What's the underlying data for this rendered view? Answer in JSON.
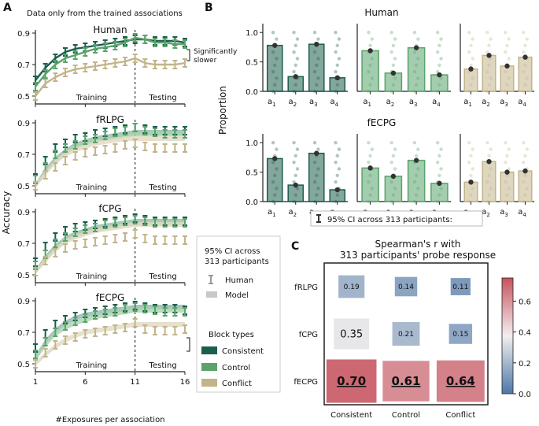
{
  "colors": {
    "consistent": "#1d5d4d",
    "control": "#5aa36b",
    "conflict": "#c2b48a",
    "consistent_model": "#8fb9ae",
    "control_model": "#a9d2ad",
    "conflict_model": "#e0d8bf",
    "heat_low": "#4d77a8",
    "heat_mid": "#f2efee",
    "heat_high": "#c7535f"
  },
  "panel_labels": {
    "a": "A",
    "b": "B",
    "c": "C"
  },
  "panel_a": {
    "header": "Data only from the trained associations",
    "ylabel": "Accuracy",
    "xlabel": "#Exposures per association",
    "xticks": [
      "1",
      "6",
      "11",
      "16"
    ],
    "yticks": [
      "0.5",
      "0.7",
      "0.9"
    ],
    "training_label": "Training",
    "testing_label": "Testing",
    "significance_label_1": "Significantly",
    "significance_label_2": "slower"
  },
  "legend_a": {
    "ci_line1": "95% CI across",
    "ci_line2": "313 participants",
    "human_label": "Human",
    "model_label": "Model",
    "block_title": "Block types",
    "items": [
      "Consistent",
      "Control",
      "Conflict"
    ]
  },
  "panel_b": {
    "ylabel": "Proportion",
    "yticks": [
      "0.0",
      "0.5",
      "1.0"
    ],
    "xtick_base": "a",
    "xtick_subs": [
      "1",
      "2",
      "3",
      "4"
    ],
    "ci_note": "95% CI across 313 participants:"
  },
  "panel_c": {
    "title_line1": "Spearman's r with",
    "title_line2": "313 participants' probe response",
    "colorbar_ticks": [
      "0.0",
      "0.2",
      "0.4",
      "0.6"
    ]
  },
  "chart_data": [
    {
      "type": "line",
      "title": "Human",
      "x": [
        1,
        2,
        3,
        4,
        5,
        6,
        7,
        8,
        9,
        10,
        11,
        12,
        13,
        14,
        15,
        16
      ],
      "xlabel": "#Exposures per association",
      "ylabel": "Accuracy",
      "ylim": [
        0.45,
        0.97
      ],
      "series": [
        {
          "name": "Consistent human",
          "values": [
            0.6,
            0.68,
            0.74,
            0.78,
            0.8,
            0.81,
            0.82,
            0.83,
            0.84,
            0.85,
            0.86,
            0.86,
            0.85,
            0.85,
            0.85,
            0.84
          ]
        },
        {
          "name": "Control human",
          "values": [
            0.56,
            0.64,
            0.7,
            0.74,
            0.76,
            0.78,
            0.8,
            0.81,
            0.82,
            0.84,
            0.87,
            0.86,
            0.84,
            0.84,
            0.83,
            0.83
          ]
        },
        {
          "name": "Conflict human",
          "values": [
            0.5,
            0.58,
            0.62,
            0.65,
            0.67,
            0.68,
            0.69,
            0.7,
            0.71,
            0.72,
            0.74,
            0.71,
            0.7,
            0.7,
            0.7,
            0.71
          ]
        }
      ]
    },
    {
      "type": "line",
      "title": "fRLPG",
      "x": [
        1,
        2,
        3,
        4,
        5,
        6,
        7,
        8,
        9,
        10,
        11,
        12,
        13,
        14,
        15,
        16
      ],
      "ylim": [
        0.45,
        0.97
      ],
      "series": [
        {
          "name": "Consistent human",
          "values": [
            0.55,
            0.66,
            0.74,
            0.77,
            0.8,
            0.81,
            0.83,
            0.84,
            0.85,
            0.86,
            0.87,
            0.86,
            0.85,
            0.85,
            0.85,
            0.85
          ]
        },
        {
          "name": "Control human",
          "values": [
            0.54,
            0.62,
            0.7,
            0.74,
            0.76,
            0.79,
            0.8,
            0.82,
            0.84,
            0.85,
            0.87,
            0.85,
            0.84,
            0.83,
            0.83,
            0.83
          ]
        },
        {
          "name": "Conflict human",
          "values": [
            0.5,
            0.57,
            0.62,
            0.66,
            0.69,
            0.71,
            0.72,
            0.73,
            0.74,
            0.76,
            0.77,
            0.75,
            0.74,
            0.74,
            0.74,
            0.74
          ]
        },
        {
          "name": "Consistent model",
          "values": [
            0.5,
            0.6,
            0.67,
            0.72,
            0.76,
            0.78,
            0.8,
            0.81,
            0.82,
            0.83,
            0.84,
            0.84,
            0.84,
            0.84,
            0.84,
            0.84
          ]
        },
        {
          "name": "Control model",
          "values": [
            0.5,
            0.59,
            0.66,
            0.71,
            0.75,
            0.77,
            0.79,
            0.8,
            0.81,
            0.82,
            0.83,
            0.83,
            0.83,
            0.83,
            0.83,
            0.83
          ]
        },
        {
          "name": "Conflict model",
          "values": [
            0.5,
            0.58,
            0.65,
            0.7,
            0.73,
            0.75,
            0.77,
            0.78,
            0.79,
            0.8,
            0.8,
            0.8,
            0.8,
            0.8,
            0.8,
            0.8
          ]
        }
      ]
    },
    {
      "type": "line",
      "title": "fCPG",
      "x": [
        1,
        2,
        3,
        4,
        5,
        6,
        7,
        8,
        9,
        10,
        11,
        12,
        13,
        14,
        15,
        16
      ],
      "ylim": [
        0.45,
        0.97
      ],
      "series": [
        {
          "name": "Consistent human",
          "values": [
            0.58,
            0.68,
            0.74,
            0.78,
            0.8,
            0.81,
            0.82,
            0.83,
            0.84,
            0.85,
            0.86,
            0.85,
            0.84,
            0.84,
            0.84,
            0.84
          ]
        },
        {
          "name": "Control human",
          "values": [
            0.56,
            0.63,
            0.7,
            0.74,
            0.77,
            0.79,
            0.8,
            0.82,
            0.83,
            0.84,
            0.85,
            0.84,
            0.83,
            0.83,
            0.83,
            0.83
          ]
        },
        {
          "name": "Conflict human",
          "values": [
            0.52,
            0.59,
            0.64,
            0.67,
            0.69,
            0.7,
            0.71,
            0.72,
            0.73,
            0.74,
            0.76,
            0.73,
            0.72,
            0.72,
            0.72,
            0.72
          ]
        },
        {
          "name": "Consistent model",
          "values": [
            0.52,
            0.61,
            0.68,
            0.73,
            0.76,
            0.78,
            0.8,
            0.81,
            0.82,
            0.83,
            0.84,
            0.84,
            0.84,
            0.84,
            0.84,
            0.84
          ]
        },
        {
          "name": "Control model",
          "values": [
            0.52,
            0.6,
            0.67,
            0.72,
            0.75,
            0.77,
            0.79,
            0.8,
            0.81,
            0.82,
            0.83,
            0.83,
            0.83,
            0.83,
            0.83,
            0.83
          ]
        },
        {
          "name": "Conflict model",
          "values": [
            0.52,
            0.59,
            0.66,
            0.71,
            0.74,
            0.76,
            0.78,
            0.79,
            0.8,
            0.81,
            0.82,
            0.82,
            0.82,
            0.82,
            0.82,
            0.82
          ]
        }
      ]
    },
    {
      "type": "line",
      "title": "fECPG",
      "x": [
        1,
        2,
        3,
        4,
        5,
        6,
        7,
        8,
        9,
        10,
        11,
        12,
        13,
        14,
        15,
        16
      ],
      "ylim": [
        0.45,
        0.97
      ],
      "series": [
        {
          "name": "Consistent human",
          "values": [
            0.6,
            0.69,
            0.75,
            0.78,
            0.8,
            0.82,
            0.83,
            0.84,
            0.85,
            0.86,
            0.87,
            0.86,
            0.85,
            0.85,
            0.85,
            0.84
          ]
        },
        {
          "name": "Control human",
          "values": [
            0.56,
            0.64,
            0.7,
            0.74,
            0.77,
            0.79,
            0.81,
            0.82,
            0.83,
            0.85,
            0.86,
            0.85,
            0.84,
            0.83,
            0.83,
            0.83
          ]
        },
        {
          "name": "Conflict human",
          "values": [
            0.5,
            0.57,
            0.62,
            0.65,
            0.67,
            0.69,
            0.7,
            0.71,
            0.72,
            0.73,
            0.76,
            0.72,
            0.71,
            0.71,
            0.71,
            0.72
          ]
        },
        {
          "name": "Consistent model",
          "values": [
            0.54,
            0.64,
            0.71,
            0.76,
            0.79,
            0.81,
            0.82,
            0.83,
            0.84,
            0.85,
            0.86,
            0.86,
            0.86,
            0.86,
            0.86,
            0.86
          ]
        },
        {
          "name": "Control model",
          "values": [
            0.53,
            0.62,
            0.69,
            0.73,
            0.76,
            0.78,
            0.8,
            0.81,
            0.82,
            0.83,
            0.84,
            0.84,
            0.84,
            0.84,
            0.84,
            0.84
          ]
        },
        {
          "name": "Conflict model",
          "values": [
            0.5,
            0.56,
            0.61,
            0.65,
            0.68,
            0.7,
            0.71,
            0.72,
            0.73,
            0.74,
            0.75,
            0.75,
            0.75,
            0.75,
            0.75,
            0.75
          ]
        }
      ]
    },
    {
      "type": "bar",
      "title": "Human",
      "ylim": [
        0,
        1.15
      ],
      "ylabel": "Proportion",
      "categories": [
        "a1",
        "a2",
        "a3",
        "a4"
      ],
      "series": [
        {
          "name": "Consistent",
          "values": [
            0.78,
            0.25,
            0.8,
            0.23
          ]
        },
        {
          "name": "Control",
          "values": [
            0.69,
            0.31,
            0.74,
            0.28
          ]
        },
        {
          "name": "Conflict",
          "values": [
            0.38,
            0.61,
            0.43,
            0.58
          ]
        }
      ]
    },
    {
      "type": "bar",
      "title": "fECPG",
      "ylim": [
        0,
        1.15
      ],
      "categories": [
        "a1",
        "a2",
        "a3",
        "a4"
      ],
      "series": [
        {
          "name": "Consistent",
          "values": [
            0.73,
            0.28,
            0.82,
            0.2
          ]
        },
        {
          "name": "Control",
          "values": [
            0.57,
            0.43,
            0.7,
            0.31
          ]
        },
        {
          "name": "Conflict",
          "values": [
            0.33,
            0.68,
            0.5,
            0.52
          ]
        }
      ]
    },
    {
      "type": "heatmap",
      "title": "Spearman's r with 313 participants' probe response",
      "rows": [
        "fRLPG",
        "fCPG",
        "fECPG"
      ],
      "cols": [
        "Consistent",
        "Control",
        "Conflict"
      ],
      "values": [
        [
          0.19,
          0.14,
          0.11
        ],
        [
          0.35,
          0.21,
          0.15
        ],
        [
          0.7,
          0.61,
          0.64
        ]
      ],
      "labels": [
        [
          "0.19",
          "0.14",
          "0.11"
        ],
        [
          "0.35",
          "0.21",
          "0.15"
        ],
        [
          "0.70",
          "0.61",
          "0.64"
        ]
      ],
      "vmin": 0.0,
      "vmax": 0.75
    }
  ]
}
